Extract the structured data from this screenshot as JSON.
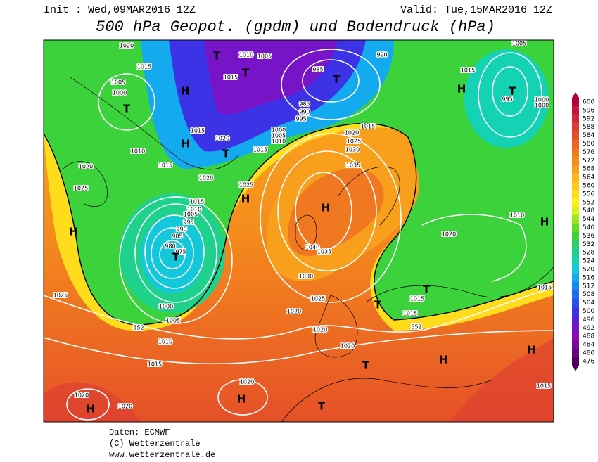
{
  "header": {
    "init": "Init : Wed,09MAR2016 12Z",
    "valid": "Valid: Tue,15MAR2016 12Z",
    "title": "500 hPa Geopot. (gpdm) und Bodendruck (hPa)"
  },
  "colorbar": {
    "levels": [
      "600",
      "596",
      "592",
      "588",
      "584",
      "580",
      "576",
      "572",
      "568",
      "564",
      "560",
      "556",
      "552",
      "548",
      "544",
      "540",
      "536",
      "532",
      "528",
      "524",
      "520",
      "516",
      "512",
      "508",
      "504",
      "500",
      "496",
      "492",
      "488",
      "484",
      "480",
      "476"
    ],
    "colors": [
      "#b4003c",
      "#c8143c",
      "#d2283c",
      "#dc3c32",
      "#e65028",
      "#ee6420",
      "#f07820",
      "#f48c1c",
      "#f8a01c",
      "#fcb41c",
      "#ffc81c",
      "#ffdc1c",
      "#fff01c",
      "#dcf01c",
      "#a0e61c",
      "#64dc1c",
      "#3cd23c",
      "#28d264",
      "#1ed28c",
      "#14d2b4",
      "#14c8dc",
      "#14aaf0",
      "#148cf0",
      "#1e6ef0",
      "#2850f0",
      "#3c32e6",
      "#5a1edc",
      "#7814c8",
      "#8c0ab4",
      "#780a96",
      "#640a78",
      "#50005a"
    ]
  },
  "map": {
    "labels": [
      "1020",
      "1015",
      "1005",
      "1000",
      "1010",
      "1015",
      "1020",
      "1025",
      "1020",
      "1015",
      "1020",
      "1015",
      "1010",
      "1005",
      "1015",
      "985",
      "985",
      "990",
      "995",
      "1000",
      "1005",
      "1010",
      "990",
      "1015",
      "1005",
      "995",
      "1000",
      "1000",
      "1020",
      "1025",
      "1030",
      "1035",
      "1015",
      "1025",
      "1015",
      "1010",
      "1005",
      "995",
      "990",
      "985",
      "980",
      "975",
      "1040",
      "1035",
      "1030",
      "1025",
      "1020",
      "1020",
      "1020",
      "1015",
      "1015",
      "1020",
      "1010",
      "1015",
      "1025",
      "1000",
      "1005",
      "1010",
      "1015",
      "1020",
      "1020",
      "1020",
      "1015",
      "552",
      "552"
    ],
    "systems": [
      "H",
      "T",
      "H",
      "T",
      "T",
      "T",
      "H",
      "T",
      "H",
      "H",
      "H",
      "T",
      "T",
      "H",
      "T",
      "T",
      "H",
      "H",
      "T",
      "T",
      "H",
      "H"
    ]
  },
  "footer": {
    "source": "Daten: ECMWF",
    "copyright": "(C) Wetterzentrale",
    "url": "www.wetterzentrale.de"
  }
}
